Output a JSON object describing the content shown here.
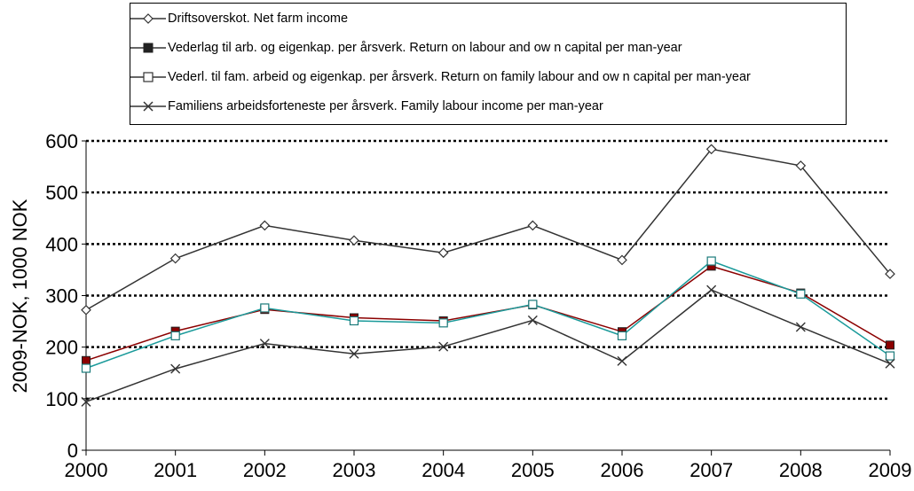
{
  "chart_data": {
    "type": "line",
    "title": "",
    "xlabel": "",
    "ylabel": "2009-NOK, 1000 NOK",
    "ylim": [
      0,
      600
    ],
    "yticks": [
      0,
      100,
      200,
      300,
      400,
      500,
      600
    ],
    "grid": "horizontal-dotted",
    "legend_position": "top",
    "x": [
      "2000",
      "2001",
      "2002",
      "2003",
      "2004",
      "2005",
      "2006",
      "2007",
      "2008",
      "2009"
    ],
    "series": [
      {
        "name": "Driftsoverskot. Net farm income",
        "marker": "diamond-open",
        "color": "#333333",
        "values": [
          272,
          372,
          436,
          407,
          383,
          436,
          369,
          584,
          552,
          342
        ]
      },
      {
        "name": "Vederlag til arb. og eigenkap. per årsverk. Return on labour and ow n capital per man-year",
        "marker": "square-filled",
        "color": "#8b0000",
        "values": [
          174,
          231,
          273,
          257,
          251,
          282,
          230,
          357,
          305,
          204
        ]
      },
      {
        "name": "Vederl. til fam. arbeid og eigenkap. per årsverk. Return on family labour and ow n capital per man-year",
        "marker": "square-open",
        "color": "#1a9a9a",
        "values": [
          159,
          222,
          276,
          251,
          247,
          283,
          222,
          367,
          303,
          183
        ]
      },
      {
        "name": "Familiens arbeidsforteneste per årsverk. Family labour income per man-year",
        "marker": "x",
        "color": "#333333",
        "values": [
          94,
          158,
          207,
          187,
          201,
          252,
          173,
          311,
          239,
          168
        ]
      }
    ]
  }
}
